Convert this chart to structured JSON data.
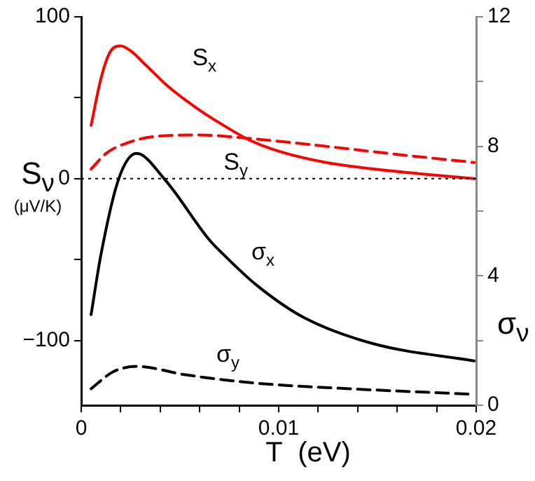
{
  "chart_data": {
    "type": "line",
    "xlabel": "T  (eV)",
    "ylabel": "S$_{ν}$\n(μV/K)",
    "y2label": "σ$_{ν}$",
    "xlim": [
      0,
      0.02
    ],
    "xticks": [
      0,
      {
        "value": 0.002,
        "label": null
      },
      {
        "value": 0.004,
        "label": null
      },
      {
        "value": 0.006,
        "label": null
      },
      {
        "value": 0.008,
        "label": null
      },
      0.01,
      {
        "value": 0.012,
        "label": null
      },
      {
        "value": 0.014,
        "label": null
      },
      {
        "value": 0.016,
        "label": null
      },
      {
        "value": 0.018,
        "label": null
      },
      0.02
    ],
    "ylim": [
      -140,
      100
    ],
    "yticks": [
      {
        "value": -100,
        "label": "−100"
      },
      {
        "value": -50,
        "label": null
      },
      0,
      {
        "value": 50,
        "label": null
      },
      100
    ],
    "y2lim": [
      0,
      12
    ],
    "y2ticks": [
      0,
      {
        "value": 2,
        "label": null
      },
      4,
      {
        "value": 6,
        "label": null
      },
      8,
      {
        "value": 10,
        "label": null
      },
      12
    ],
    "grid": false,
    "legend": false,
    "marker": "none",
    "series": [
      {
        "name": "S$_{x}$",
        "color": "#ff0000",
        "line_style": "solid",
        "x": [
          0.0005,
          0.001,
          0.0015,
          0.002,
          0.0025,
          0.0032,
          0.0044,
          0.0058,
          0.0072,
          0.0085,
          0.01,
          0.0124,
          0.0148,
          0.0172,
          0.0199
        ],
        "values": [
          33,
          62,
          79,
          82,
          79,
          71,
          57,
          44,
          33,
          24,
          17,
          10,
          6,
          3,
          0
        ]
      },
      {
        "name": "S$_{y}$",
        "color": "#ff0000",
        "line_style": "dashed",
        "x": [
          0.0005,
          0.0013,
          0.0023,
          0.0037,
          0.006,
          0.0084,
          0.0124,
          0.016,
          0.0199
        ],
        "values": [
          6,
          16,
          22,
          26,
          27,
          25,
          20,
          15,
          10
        ]
      },
      {
        "name": "σ$_{x}$",
        "color": "#000000",
        "line_style": "solid",
        "axis": "y2",
        "x": [
          0.0005,
          0.001,
          0.0019,
          0.0028,
          0.0042,
          0.0065,
          0.0072,
          0.0089,
          0.0113,
          0.0148,
          0.0199
        ],
        "values": [
          2.8,
          4.66,
          7.0,
          7.78,
          7.0,
          5.1,
          4.66,
          3.7,
          2.7,
          1.9,
          1.37
        ]
      },
      {
        "name": "σ$_{y}$",
        "color": "#000000",
        "line_style": "dashed",
        "axis": "y2",
        "x": [
          0.0005,
          0.0016,
          0.0028,
          0.0053,
          0.0089,
          0.0136,
          0.0199
        ],
        "values": [
          0.51,
          1.03,
          1.2,
          0.94,
          0.68,
          0.51,
          0.34
        ]
      }
    ],
    "ref_lines": [
      {
        "axis": "y",
        "value": 0,
        "color": "#000000",
        "line_style": "dotted"
      }
    ]
  }
}
